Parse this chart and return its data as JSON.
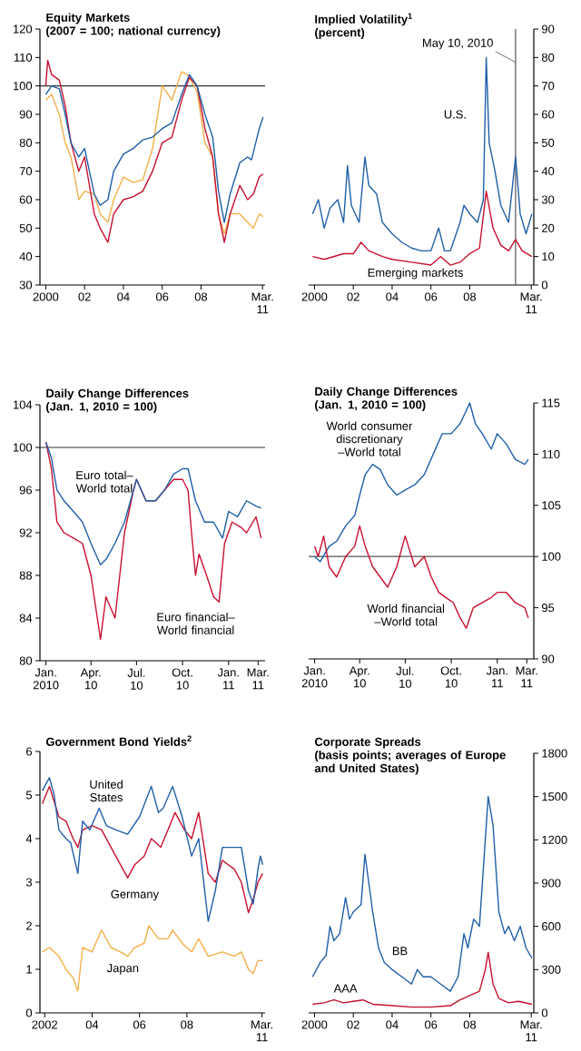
{
  "chart_data": [
    {
      "type": "line",
      "title": "Equity Markets",
      "subtitle": "(2007 = 100; national currency)",
      "xlim": [
        1999.7,
        2011.3
      ],
      "ylim": [
        30,
        120
      ],
      "yticks": [
        30,
        40,
        50,
        60,
        70,
        80,
        90,
        100,
        110,
        120
      ],
      "xticks": [
        {
          "value": 2000,
          "label": "2000"
        },
        {
          "value": 2002,
          "label": "02"
        },
        {
          "value": 2004,
          "label": "04"
        },
        {
          "value": 2006,
          "label": "06"
        },
        {
          "value": 2008,
          "label": "08"
        },
        {
          "value": 2011.17,
          "label": "Mar. 11"
        }
      ],
      "ref_lines": [
        {
          "axis": "y",
          "value": 100,
          "color": "#333333"
        }
      ],
      "series": [
        {
          "color": "#f2b04a",
          "x": [
            2000,
            2000.3,
            2000.7,
            2001,
            2001.3,
            2001.7,
            2002,
            2002.5,
            2002.8,
            2003.2,
            2003.5,
            2004,
            2004.5,
            2005,
            2005.5,
            2006,
            2006.5,
            2007,
            2007.3,
            2007.8,
            2008.2,
            2008.6,
            2008.9,
            2009.2,
            2009.5,
            2010,
            2010.4,
            2010.7,
            2011,
            2011.2
          ],
          "values": [
            95,
            97,
            90,
            80,
            75,
            60,
            63,
            62,
            55,
            52,
            60,
            68,
            66,
            67,
            78,
            100,
            95,
            105,
            104,
            98,
            80,
            75,
            55,
            48,
            55,
            55,
            52,
            50,
            55,
            54
          ]
        },
        {
          "color": "#c8102e",
          "x": [
            2000,
            2000.1,
            2000.3,
            2000.7,
            2001,
            2001.3,
            2001.7,
            2002,
            2002.5,
            2002.8,
            2003.2,
            2003.5,
            2004,
            2004.5,
            2005,
            2005.5,
            2006,
            2006.5,
            2007,
            2007.4,
            2007.8,
            2008.2,
            2008.6,
            2008.9,
            2009.2,
            2009.5,
            2010,
            2010.4,
            2010.7,
            2011,
            2011.2
          ],
          "values": [
            100,
            109,
            104,
            102,
            93,
            80,
            70,
            75,
            55,
            50,
            45,
            55,
            60,
            61,
            63,
            70,
            80,
            82,
            95,
            103,
            100,
            85,
            75,
            55,
            45,
            55,
            65,
            60,
            62,
            68,
            69
          ]
        },
        {
          "color": "#1f5fa8",
          "x": [
            2000,
            2000.3,
            2000.7,
            2001,
            2001.3,
            2001.7,
            2002,
            2002.5,
            2002.8,
            2003.2,
            2003.5,
            2004,
            2004.5,
            2005,
            2005.5,
            2006,
            2006.5,
            2007,
            2007.4,
            2007.8,
            2008.2,
            2008.6,
            2008.9,
            2009.2,
            2009.5,
            2010,
            2010.4,
            2010.6,
            2011,
            2011.2
          ],
          "values": [
            97,
            100,
            99,
            90,
            80,
            75,
            78,
            62,
            58,
            60,
            70,
            76,
            78,
            81,
            82,
            85,
            87,
            97,
            104,
            100,
            90,
            82,
            63,
            52,
            62,
            73,
            75,
            74,
            85,
            89
          ]
        }
      ]
    },
    {
      "type": "line",
      "title": "Implied Volatility$^{1}$",
      "subtitle": "(percent)",
      "xlim": [
        1999.7,
        2011.3
      ],
      "ylim": [
        0,
        90
      ],
      "yticks": [
        0,
        10,
        20,
        30,
        40,
        50,
        60,
        70,
        80,
        90
      ],
      "xticks": [
        {
          "value": 2000,
          "label": "2000"
        },
        {
          "value": 2002,
          "label": "02"
        },
        {
          "value": 2004,
          "label": "04"
        },
        {
          "value": 2006,
          "label": "06"
        },
        {
          "value": 2008,
          "label": "08"
        },
        {
          "value": 2011.17,
          "label": "Mar. 11"
        }
      ],
      "ref_lines": [
        {
          "axis": "x",
          "value": 2010.36,
          "label": "May 10, 2010",
          "color": "#555555"
        }
      ],
      "series": [
        {
          "name": "U.S.",
          "color": "#1f5fa8",
          "x": [
            1999.9,
            2000.2,
            2000.5,
            2000.8,
            2001.2,
            2001.5,
            2001.7,
            2001.9,
            2002.3,
            2002.6,
            2002.8,
            2003.2,
            2003.5,
            2004,
            2004.5,
            2005,
            2005.5,
            2006,
            2006.4,
            2006.7,
            2007,
            2007.5,
            2007.7,
            2008,
            2008.4,
            2008.7,
            2008.85,
            2009,
            2009.3,
            2009.6,
            2010,
            2010.36,
            2010.6,
            2010.9,
            2011.2
          ],
          "values": [
            25,
            30,
            20,
            27,
            30,
            22,
            42,
            28,
            22,
            45,
            35,
            32,
            22,
            18,
            15,
            13,
            12,
            12,
            20,
            12,
            12,
            22,
            28,
            25,
            22,
            30,
            80,
            50,
            40,
            28,
            22,
            45,
            25,
            18,
            25
          ]
        },
        {
          "name": "Emerging markets",
          "color": "#c8102e",
          "x": [
            1999.9,
            2000.5,
            2001,
            2001.5,
            2002,
            2002.4,
            2002.8,
            2003.5,
            2004,
            2005,
            2006,
            2006.5,
            2007,
            2007.5,
            2008,
            2008.5,
            2008.85,
            2009.2,
            2009.6,
            2010,
            2010.36,
            2010.7,
            2011.2
          ],
          "values": [
            10,
            9,
            10,
            11,
            11,
            15,
            12,
            10,
            9,
            8,
            7,
            10,
            7,
            8,
            11,
            13,
            33,
            20,
            14,
            12,
            16,
            12,
            10
          ]
        }
      ]
    },
    {
      "type": "line",
      "title": "Daily Change Differences",
      "subtitle": "(Jan. 1, 2010 = 100)",
      "xlim": [
        "2009-12-20",
        "2011-03-15"
      ],
      "ylim": [
        80,
        104
      ],
      "yticks": [
        80,
        84,
        88,
        92,
        96,
        100,
        104
      ],
      "xticks": [
        {
          "value": "2010-01-01",
          "label": "Jan. 2010"
        },
        {
          "value": "2010-04-01",
          "label": "Apr. 10"
        },
        {
          "value": "2010-07-01",
          "label": "Jul. 10"
        },
        {
          "value": "2010-10-01",
          "label": "Oct. 10"
        },
        {
          "value": "2011-01-01",
          "label": "Jan. 11"
        },
        {
          "value": "2011-03-01",
          "label": "Mar. 11"
        }
      ],
      "ref_lines": [
        {
          "axis": "y",
          "value": 100,
          "color": "#333333"
        }
      ],
      "series": [
        {
          "name": "Euro financial–World financial",
          "color": "#c8102e",
          "x": [
            "2010-01-01",
            "2010-01-12",
            "2010-01-23",
            "2010-02-06",
            "2010-02-25",
            "2010-03-15",
            "2010-04-01",
            "2010-04-20",
            "2010-05-01",
            "2010-05-19",
            "2010-06-07",
            "2010-06-25",
            "2010-07-01",
            "2010-07-20",
            "2010-08-08",
            "2010-08-26",
            "2010-09-13",
            "2010-10-01",
            "2010-10-12",
            "2010-10-19",
            "2010-10-27",
            "2010-11-03",
            "2010-11-18",
            "2010-12-02",
            "2010-12-13",
            "2010-12-24",
            "2011-01-08",
            "2011-01-26",
            "2011-02-06",
            "2011-02-25",
            "2011-03-07"
          ],
          "values": [
            100.5,
            98,
            93,
            92,
            91.5,
            91,
            88,
            82,
            86,
            84,
            92,
            96,
            97,
            95,
            95,
            96,
            97,
            97,
            96,
            92,
            88,
            90,
            88,
            86,
            85.5,
            91,
            93,
            92.5,
            92,
            93.5,
            91.5
          ]
        },
        {
          "name": "Euro total–World total",
          "color": "#1f5fa8",
          "x": [
            "2010-01-01",
            "2010-01-12",
            "2010-01-23",
            "2010-02-06",
            "2010-02-25",
            "2010-03-15",
            "2010-04-01",
            "2010-04-20",
            "2010-05-01",
            "2010-05-19",
            "2010-06-07",
            "2010-06-25",
            "2010-07-01",
            "2010-07-20",
            "2010-08-08",
            "2010-08-26",
            "2010-09-13",
            "2010-10-01",
            "2010-10-12",
            "2010-10-27",
            "2010-11-14",
            "2010-12-02",
            "2010-12-20",
            "2011-01-01",
            "2011-01-19",
            "2011-02-06",
            "2011-02-25",
            "2011-03-07"
          ],
          "values": [
            100.5,
            99,
            96,
            95,
            94,
            93,
            91,
            89,
            89.5,
            91,
            93,
            96,
            97,
            95,
            95,
            96,
            97.5,
            98,
            98,
            95,
            93,
            93,
            91.5,
            94,
            93.5,
            95,
            94.5,
            94.3
          ]
        }
      ]
    },
    {
      "type": "line",
      "title": "Daily Change Differences",
      "subtitle": "(Jan. 1, 2010 = 100)",
      "xlim": [
        "2009-12-20",
        "2011-03-15"
      ],
      "ylim": [
        90,
        115
      ],
      "yticks": [
        90,
        95,
        100,
        105,
        110,
        115
      ],
      "xticks": [
        {
          "value": "2010-01-01",
          "label": "Jan. 2010"
        },
        {
          "value": "2010-04-01",
          "label": "Apr. 10"
        },
        {
          "value": "2010-07-01",
          "label": "Jul. 10"
        },
        {
          "value": "2010-10-01",
          "label": "Oct. 10"
        },
        {
          "value": "2011-01-01",
          "label": "Jan. 11"
        },
        {
          "value": "2011-03-01",
          "label": "Mar. 11"
        }
      ],
      "ref_lines": [
        {
          "axis": "y",
          "value": 100,
          "color": "#555555"
        }
      ],
      "series": [
        {
          "name": "World consumer discretionary –World total",
          "color": "#1f5fa8",
          "x": [
            "2010-01-01",
            "2010-01-12",
            "2010-01-30",
            "2010-02-14",
            "2010-03-04",
            "2010-03-22",
            "2010-04-01",
            "2010-04-12",
            "2010-04-27",
            "2010-05-12",
            "2010-05-27",
            "2010-06-14",
            "2010-07-01",
            "2010-07-20",
            "2010-08-08",
            "2010-08-26",
            "2010-09-13",
            "2010-10-01",
            "2010-10-19",
            "2010-11-07",
            "2010-11-18",
            "2010-12-02",
            "2010-12-20",
            "2011-01-01",
            "2011-01-19",
            "2011-02-06",
            "2011-02-25",
            "2011-03-04"
          ],
          "values": [
            100,
            99.5,
            101,
            101.5,
            103,
            104,
            106,
            108,
            109,
            108.5,
            107,
            106,
            106.5,
            107,
            108,
            110,
            112,
            112,
            113,
            115,
            113,
            112,
            110.5,
            112,
            111,
            109.5,
            109,
            109.5
          ]
        },
        {
          "name": "World financial –World total",
          "color": "#c8102e",
          "x": [
            "2010-01-01",
            "2010-01-08",
            "2010-01-19",
            "2010-01-30",
            "2010-02-14",
            "2010-03-04",
            "2010-03-22",
            "2010-04-01",
            "2010-04-12",
            "2010-04-27",
            "2010-05-12",
            "2010-05-27",
            "2010-06-14",
            "2010-07-01",
            "2010-07-20",
            "2010-08-08",
            "2010-08-22",
            "2010-09-06",
            "2010-09-20",
            "2010-10-05",
            "2010-10-19",
            "2010-10-31",
            "2010-11-14",
            "2010-12-02",
            "2010-12-20",
            "2011-01-01",
            "2011-01-19",
            "2011-02-06",
            "2011-02-25",
            "2011-03-04"
          ],
          "values": [
            101,
            100,
            102,
            99,
            98,
            100,
            101,
            103,
            101,
            99,
            98,
            97,
            99,
            102,
            99,
            100,
            98,
            96.5,
            96,
            95.5,
            94,
            93,
            95,
            95.5,
            96,
            96.5,
            96.5,
            95.5,
            95,
            94
          ]
        }
      ]
    },
    {
      "type": "line",
      "title": "Government Bond Yields$^{2}$",
      "xlim": [
        2001.8,
        2011.3
      ],
      "ylim": [
        0,
        6
      ],
      "yticks": [
        0,
        1,
        2,
        3,
        4,
        5,
        6
      ],
      "xticks": [
        {
          "value": 2002,
          "label": "2002"
        },
        {
          "value": 2004,
          "label": "04"
        },
        {
          "value": 2006,
          "label": "06"
        },
        {
          "value": 2008,
          "label": "08"
        },
        {
          "value": 2011.17,
          "label": "Mar. 11"
        }
      ],
      "series": [
        {
          "name": "Japan",
          "color": "#f2b04a",
          "x": [
            2001.9,
            2002.2,
            2002.6,
            2002.9,
            2003.2,
            2003.4,
            2003.6,
            2004,
            2004.4,
            2004.8,
            2005.2,
            2005.5,
            2005.8,
            2006.2,
            2006.4,
            2006.8,
            2007.2,
            2007.4,
            2007.8,
            2008.2,
            2008.5,
            2008.9,
            2009.5,
            2010,
            2010.3,
            2010.6,
            2010.8,
            2011,
            2011.2
          ],
          "values": [
            1.4,
            1.5,
            1.3,
            1.0,
            0.8,
            0.5,
            1.5,
            1.4,
            1.9,
            1.5,
            1.4,
            1.3,
            1.5,
            1.6,
            2.0,
            1.7,
            1.7,
            1.9,
            1.6,
            1.4,
            1.7,
            1.3,
            1.4,
            1.3,
            1.4,
            1.0,
            0.9,
            1.2,
            1.2
          ]
        },
        {
          "name": "Germany",
          "color": "#c8102e",
          "x": [
            2001.9,
            2002.2,
            2002.6,
            2002.9,
            2003.2,
            2003.4,
            2003.6,
            2004,
            2004.4,
            2004.8,
            2005.2,
            2005.5,
            2005.8,
            2006.2,
            2006.5,
            2006.9,
            2007.2,
            2007.5,
            2007.9,
            2008.2,
            2008.5,
            2008.9,
            2009.2,
            2009.5,
            2010,
            2010.3,
            2010.6,
            2010.8,
            2011,
            2011.2
          ],
          "values": [
            4.8,
            5.2,
            4.5,
            4.4,
            4.0,
            3.8,
            4.2,
            4.3,
            4.2,
            3.8,
            3.4,
            3.1,
            3.4,
            3.6,
            4.0,
            3.8,
            4.2,
            4.6,
            4.2,
            4.0,
            4.6,
            3.2,
            3.0,
            3.5,
            3.3,
            3.0,
            2.3,
            2.6,
            3.0,
            3.2
          ]
        },
        {
          "name": "United States",
          "color": "#1f5fa8",
          "x": [
            2001.9,
            2002.2,
            2002.4,
            2002.6,
            2002.9,
            2003.1,
            2003.4,
            2003.6,
            2003.9,
            2004.3,
            2004.6,
            2005,
            2005.5,
            2006,
            2006.5,
            2006.8,
            2007,
            2007.4,
            2007.8,
            2008.2,
            2008.5,
            2008.9,
            2009.2,
            2009.5,
            2010,
            2010.3,
            2010.6,
            2010.8,
            2011,
            2011.1,
            2011.2
          ],
          "values": [
            5.1,
            5.4,
            5.0,
            4.2,
            4.0,
            3.9,
            3.2,
            4.4,
            4.2,
            4.7,
            4.3,
            4.2,
            4.1,
            4.5,
            5.2,
            4.6,
            4.7,
            5.2,
            4.5,
            3.6,
            4.0,
            2.1,
            2.8,
            3.8,
            3.8,
            3.8,
            2.8,
            2.5,
            3.3,
            3.6,
            3.4
          ]
        }
      ]
    },
    {
      "type": "line",
      "title": "Corporate Spreads",
      "subtitle": "(basis points; averages of Europe and United States)",
      "xlim": [
        1999.7,
        2011.3
      ],
      "ylim": [
        0,
        1800
      ],
      "yticks": [
        0,
        300,
        600,
        900,
        1200,
        1500,
        1800
      ],
      "xticks": [
        {
          "value": 2000,
          "label": "2000"
        },
        {
          "value": 2002,
          "label": "02"
        },
        {
          "value": 2004,
          "label": "04"
        },
        {
          "value": 2006,
          "label": "06"
        },
        {
          "value": 2008,
          "label": "08"
        },
        {
          "value": 2011.17,
          "label": "Mar. 11"
        }
      ],
      "series": [
        {
          "name": "BB",
          "color": "#1f5fa8",
          "x": [
            1999.9,
            2000.3,
            2000.6,
            2000.8,
            2001,
            2001.3,
            2001.6,
            2001.8,
            2002,
            2002.4,
            2002.6,
            2002.8,
            2003,
            2003.3,
            2003.6,
            2004,
            2004.5,
            2005,
            2005.3,
            2005.6,
            2006,
            2006.5,
            2007,
            2007.4,
            2007.7,
            2007.9,
            2008.2,
            2008.5,
            2008.8,
            2008.95,
            2009.2,
            2009.5,
            2009.8,
            2010,
            2010.3,
            2010.6,
            2010.9,
            2011.2
          ],
          "values": [
            250,
            350,
            400,
            600,
            500,
            550,
            800,
            650,
            700,
            750,
            1100,
            900,
            700,
            450,
            350,
            300,
            250,
            200,
            300,
            250,
            250,
            200,
            150,
            250,
            550,
            450,
            650,
            600,
            1200,
            1500,
            1300,
            700,
            550,
            600,
            500,
            600,
            450,
            380
          ]
        },
        {
          "name": "AAA",
          "color": "#c8102e",
          "x": [
            1999.9,
            2000.5,
            2001,
            2001.5,
            2002,
            2002.5,
            2003,
            2004,
            2005,
            2006,
            2007,
            2007.5,
            2008,
            2008.5,
            2008.8,
            2008.95,
            2009.2,
            2009.5,
            2010,
            2010.5,
            2011.2
          ],
          "values": [
            60,
            70,
            90,
            70,
            80,
            90,
            60,
            50,
            40,
            40,
            50,
            90,
            120,
            150,
            300,
            420,
            200,
            100,
            70,
            80,
            60
          ]
        }
      ]
    }
  ]
}
